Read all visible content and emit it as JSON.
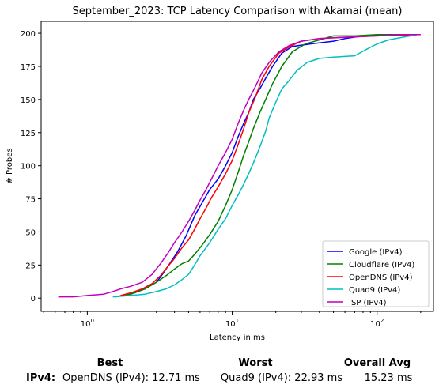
{
  "chart_data": {
    "type": "line",
    "title": "September_2023: TCP Latency Comparison with Akamai (mean)",
    "xlabel": "Latency in ms",
    "ylabel": "# Probes",
    "xscale": "log",
    "xlim": [
      0.48,
      245
    ],
    "ylim": [
      -10,
      209
    ],
    "yticks": [
      0,
      25,
      50,
      75,
      100,
      125,
      150,
      175,
      200
    ],
    "xticks": [
      {
        "value": 1,
        "base": "10",
        "exp": "0"
      },
      {
        "value": 10,
        "base": "10",
        "exp": "1"
      },
      {
        "value": 100,
        "base": "10",
        "exp": "2"
      }
    ],
    "grid": false,
    "legend_position": "lower-right",
    "series": [
      {
        "name": "Google (IPv4)",
        "color": "#0000ff",
        "x": [
          1.55,
          2.0,
          2.5,
          3.0,
          3.3,
          3.7,
          4.2,
          4.8,
          5.5,
          6.2,
          7.0,
          8.0,
          9.0,
          10.0,
          11.0,
          12.0,
          13.0,
          14.0,
          15.5,
          17.0,
          19.0,
          22.0,
          26.0,
          35.0,
          50.0,
          60.0,
          80.0,
          120.0,
          190.0
        ],
        "y": [
          1,
          3,
          7,
          12,
          18,
          26,
          35,
          47,
          62,
          72,
          82,
          90,
          100,
          110,
          122,
          132,
          140,
          150,
          158,
          166,
          175,
          185,
          190,
          192,
          194,
          196,
          198,
          199,
          199
        ]
      },
      {
        "name": "Cloudflare (IPv4)",
        "color": "#008000",
        "x": [
          1.55,
          2.0,
          2.5,
          3.0,
          3.5,
          4.0,
          4.5,
          5.0,
          5.5,
          6.2,
          7.0,
          8.0,
          9.0,
          10.0,
          11.0,
          12.0,
          13.0,
          14.0,
          15.5,
          17.0,
          19.0,
          22.0,
          26.0,
          32.0,
          40.0,
          50.0,
          70.0,
          100.0,
          190.0
        ],
        "y": [
          1,
          3,
          7,
          12,
          17,
          22,
          26,
          28,
          33,
          40,
          48,
          58,
          70,
          82,
          95,
          108,
          118,
          128,
          140,
          150,
          162,
          175,
          186,
          192,
          195,
          198,
          198,
          199,
          199
        ]
      },
      {
        "name": "OpenDNS (IPv4)",
        "color": "#ff0000",
        "x": [
          1.7,
          2.0,
          2.4,
          2.8,
          3.2,
          3.6,
          4.0,
          4.5,
          5.0,
          5.5,
          6.0,
          6.6,
          7.2,
          8.0,
          9.0,
          10.0,
          11.0,
          12.0,
          13.0,
          14.5,
          16.0,
          18.0,
          21.0,
          25.0,
          30.0,
          40.0,
          60.0,
          100.0,
          195.0
        ],
        "y": [
          2,
          4,
          7,
          11,
          17,
          24,
          30,
          38,
          44,
          52,
          60,
          68,
          76,
          84,
          94,
          104,
          116,
          128,
          140,
          152,
          165,
          175,
          185,
          190,
          194,
          196,
          197,
          198,
          199
        ]
      },
      {
        "name": "Quad9 (IPv4)",
        "color": "#00bfbf",
        "x": [
          1.5,
          2.0,
          2.5,
          3.0,
          3.5,
          4.0,
          4.5,
          5.0,
          5.5,
          6.0,
          7.0,
          8.0,
          9.0,
          10.0,
          11.0,
          12.0,
          13.0,
          14.0,
          15.0,
          16.0,
          17.0,
          18.0,
          20.0,
          22.0,
          25.0,
          28.0,
          33.0,
          40.0,
          50.0,
          70.0,
          85.0,
          100.0,
          120.0,
          150.0,
          190.0
        ],
        "y": [
          1,
          2,
          3,
          5,
          7,
          10,
          14,
          18,
          25,
          32,
          42,
          52,
          60,
          70,
          78,
          86,
          94,
          102,
          110,
          118,
          126,
          136,
          148,
          158,
          165,
          172,
          178,
          181,
          182,
          183,
          188,
          192,
          195,
          197,
          199
        ]
      },
      {
        "name": "ISP (IPv4)",
        "color": "#bf00bf",
        "x": [
          0.63,
          0.8,
          1.0,
          1.3,
          1.5,
          1.7,
          2.0,
          2.4,
          2.8,
          3.2,
          3.6,
          4.0,
          4.5,
          5.0,
          5.5,
          6.0,
          6.6,
          7.2,
          8.0,
          9.0,
          10.0,
          11.0,
          12.0,
          13.0,
          14.5,
          16.0,
          18.0,
          21.0,
          25.0,
          30.0,
          40.0,
          60.0,
          100.0,
          150.0,
          200.0
        ],
        "y": [
          1,
          1,
          2,
          3,
          5,
          7,
          9,
          12,
          18,
          26,
          34,
          42,
          50,
          58,
          66,
          74,
          82,
          90,
          100,
          110,
          120,
          132,
          142,
          150,
          160,
          170,
          178,
          186,
          191,
          194,
          196,
          197,
          198,
          199,
          199
        ]
      }
    ]
  },
  "summary": {
    "best_header": "Best",
    "worst_header": "Worst",
    "avg_header": "Overall Avg",
    "row_label": "IPv4:",
    "best_value": "OpenDNS (IPv4): 12.71 ms",
    "worst_value": "Quad9 (IPv4): 22.93 ms",
    "avg_value": "15.23 ms"
  }
}
